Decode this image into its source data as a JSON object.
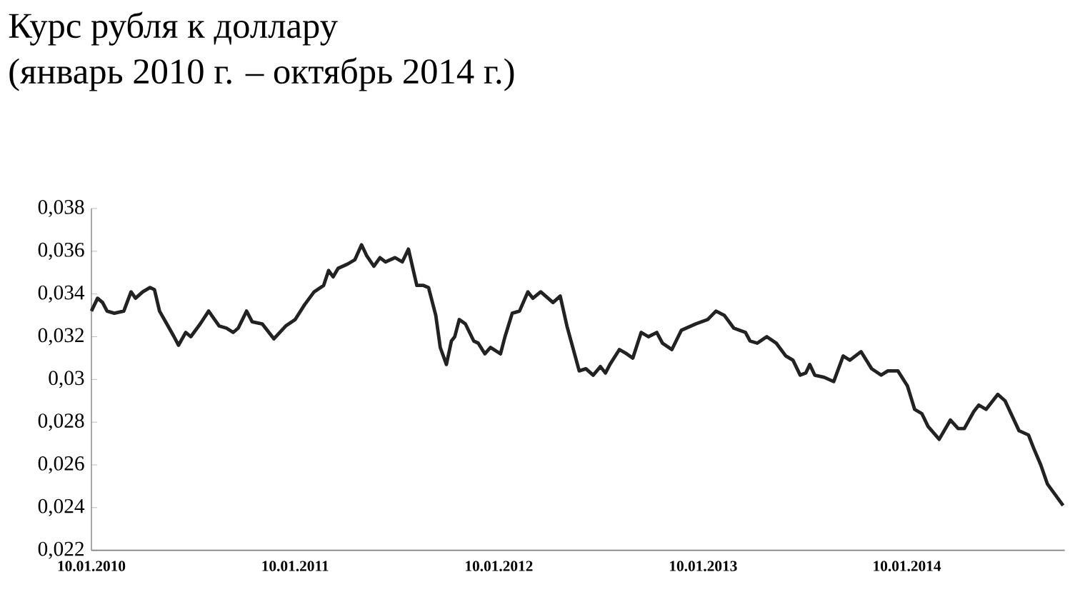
{
  "chart_data": {
    "type": "line",
    "title": "Курс рубля к доллару",
    "subtitle": "(январь 2010 г. – октябрь 2014 г.)",
    "x": [
      "2010-01-10",
      "2010-01-21",
      "2010-01-30",
      "2010-02-07",
      "2010-02-20",
      "2010-03-09",
      "2010-03-22",
      "2010-03-30",
      "2010-04-12",
      "2010-04-25",
      "2010-05-03",
      "2010-05-12",
      "2010-05-25",
      "2010-06-07",
      "2010-06-15",
      "2010-06-28",
      "2010-07-07",
      "2010-07-24",
      "2010-08-08",
      "2010-08-27",
      "2010-09-09",
      "2010-09-21",
      "2010-09-30",
      "2010-10-15",
      "2010-10-25",
      "2010-11-12",
      "2010-12-03",
      "2010-12-24",
      "2011-01-10",
      "2011-01-27",
      "2011-02-13",
      "2011-03-02",
      "2011-03-11",
      "2011-03-19",
      "2011-03-28",
      "2011-04-14",
      "2011-04-27",
      "2011-05-09",
      "2011-05-18",
      "2011-05-31",
      "2011-06-11",
      "2011-06-21",
      "2011-07-08",
      "2011-07-21",
      "2011-08-01",
      "2011-08-16",
      "2011-08-28",
      "2011-09-06",
      "2011-09-19",
      "2011-09-27",
      "2011-10-08",
      "2011-10-17",
      "2011-10-23",
      "2011-10-31",
      "2011-11-11",
      "2011-11-26",
      "2011-12-04",
      "2011-12-16",
      "2011-12-26",
      "2012-01-13",
      "2012-01-21",
      "2012-02-03",
      "2012-02-16",
      "2012-03-02",
      "2012-03-11",
      "2012-03-25",
      "2012-04-16",
      "2012-04-29",
      "2012-05-11",
      "2012-06-02",
      "2012-06-14",
      "2012-06-27",
      "2012-07-10",
      "2012-07-19",
      "2012-07-27",
      "2012-08-13",
      "2012-08-26",
      "2012-09-06",
      "2012-09-21",
      "2012-10-04",
      "2012-10-19",
      "2012-10-29",
      "2012-11-15",
      "2012-12-02",
      "2012-12-28",
      "2013-01-18",
      "2013-02-02",
      "2013-02-17",
      "2013-03-06",
      "2013-03-27",
      "2013-04-04",
      "2013-04-17",
      "2013-05-04",
      "2013-05-21",
      "2013-06-07",
      "2013-06-20",
      "2013-07-03",
      "2013-07-13",
      "2013-07-20",
      "2013-07-29",
      "2013-08-15",
      "2013-09-01",
      "2013-09-18",
      "2013-09-30",
      "2013-10-20",
      "2013-11-08",
      "2013-11-25",
      "2013-12-07",
      "2013-12-25",
      "2014-01-11",
      "2014-01-24",
      "2014-02-06",
      "2014-02-17",
      "2014-03-09",
      "2014-03-29",
      "2014-04-12",
      "2014-04-23",
      "2014-05-10",
      "2014-05-19",
      "2014-06-01",
      "2014-06-13",
      "2014-06-22",
      "2014-07-05",
      "2014-07-30",
      "2014-08-16",
      "2014-08-25",
      "2014-09-07",
      "2014-09-19",
      "2014-10-17"
    ],
    "series": [
      {
        "color": "#222222",
        "values": [
          0.0332,
          0.0338,
          0.0336,
          0.0332,
          0.0331,
          0.0332,
          0.0341,
          0.0338,
          0.0341,
          0.0343,
          0.0342,
          0.0332,
          0.0326,
          0.032,
          0.0316,
          0.0322,
          0.032,
          0.0326,
          0.0332,
          0.0325,
          0.0324,
          0.0322,
          0.0324,
          0.0332,
          0.0327,
          0.0326,
          0.0319,
          0.0325,
          0.0328,
          0.0335,
          0.0341,
          0.0344,
          0.0351,
          0.0348,
          0.0352,
          0.0354,
          0.0356,
          0.0363,
          0.0358,
          0.0353,
          0.0357,
          0.0355,
          0.0357,
          0.0355,
          0.0361,
          0.0344,
          0.0344,
          0.0343,
          0.033,
          0.0315,
          0.0307,
          0.0318,
          0.032,
          0.0328,
          0.0326,
          0.0318,
          0.0317,
          0.0312,
          0.0315,
          0.0312,
          0.032,
          0.0331,
          0.0332,
          0.0341,
          0.0338,
          0.0341,
          0.0336,
          0.0339,
          0.0325,
          0.0304,
          0.0305,
          0.0302,
          0.0306,
          0.0303,
          0.0307,
          0.0314,
          0.0312,
          0.031,
          0.0322,
          0.032,
          0.0322,
          0.0317,
          0.0314,
          0.0323,
          0.0326,
          0.0328,
          0.0332,
          0.033,
          0.0324,
          0.0322,
          0.0318,
          0.0317,
          0.032,
          0.0317,
          0.0311,
          0.0309,
          0.0302,
          0.0303,
          0.0307,
          0.0302,
          0.0301,
          0.0299,
          0.0311,
          0.0309,
          0.0313,
          0.0305,
          0.0302,
          0.0304,
          0.0304,
          0.0297,
          0.0286,
          0.0284,
          0.0278,
          0.0272,
          0.0281,
          0.0277,
          0.0277,
          0.0285,
          0.0288,
          0.0286,
          0.029,
          0.0293,
          0.029,
          0.0276,
          0.0274,
          0.0268,
          0.026,
          0.0251,
          0.0241
        ]
      }
    ],
    "xlim": [
      "2010-01-10",
      "2014-10-20"
    ],
    "xticks": [
      {
        "value": "2010-01-10",
        "label": "10.01.2010"
      },
      {
        "value": "2011-01-10",
        "label": "10.01.2011"
      },
      {
        "value": "2012-01-10",
        "label": "10.01.2012"
      },
      {
        "value": "2013-01-10",
        "label": "10.01.2013"
      },
      {
        "value": "2014-01-10",
        "label": "10.01.2014"
      }
    ],
    "ylim": [
      0.022,
      0.038
    ],
    "yticks": [
      {
        "value": 0.022,
        "label": "0,022"
      },
      {
        "value": 0.024,
        "label": "0,024"
      },
      {
        "value": 0.026,
        "label": "0,026"
      },
      {
        "value": 0.028,
        "label": "0,028"
      },
      {
        "value": 0.03,
        "label": "0,03"
      },
      {
        "value": 0.032,
        "label": "0,032"
      },
      {
        "value": 0.034,
        "label": "0,034"
      },
      {
        "value": 0.036,
        "label": "0,036"
      },
      {
        "value": 0.038,
        "label": "0,038"
      }
    ],
    "marker": "none",
    "line_style": "solid"
  }
}
